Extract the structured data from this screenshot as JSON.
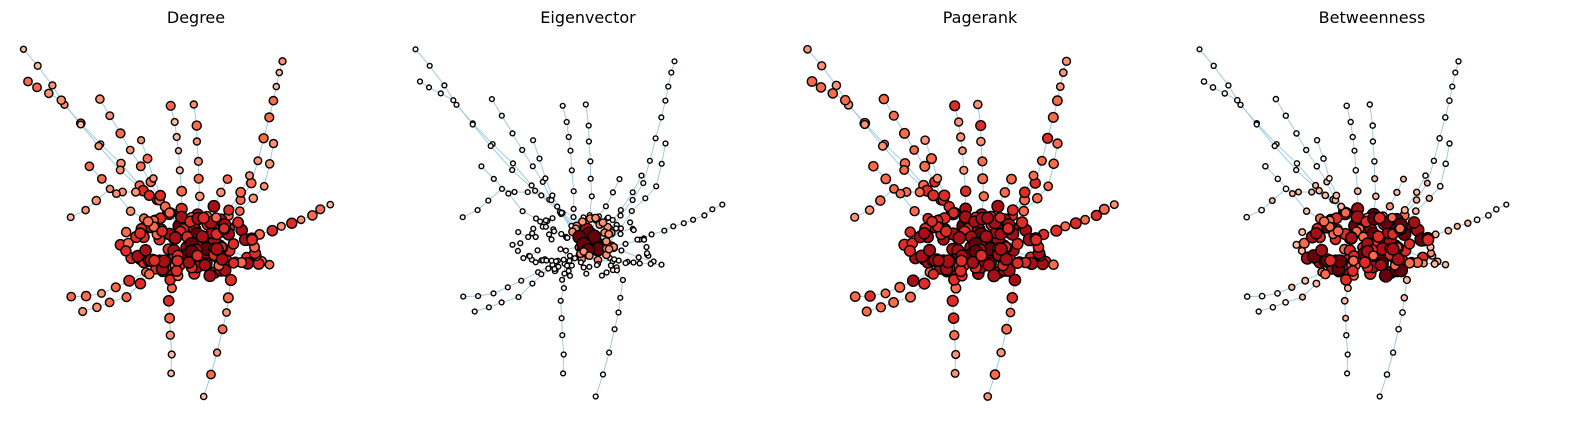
{
  "figure": {
    "panels": [
      {
        "title": "Degree",
        "measure": "degree"
      },
      {
        "title": "Eigenvector",
        "measure": "eigenvector"
      },
      {
        "title": "Pagerank",
        "measure": "pagerank"
      },
      {
        "title": "Betweenness",
        "measure": "betweenness"
      }
    ]
  },
  "colors": {
    "edge": "#9ecae1",
    "node_outline": "#000000",
    "colormap": [
      "#fff5f0",
      "#fcbba1",
      "#fc9272",
      "#fb6a4a",
      "#de2d26",
      "#a50f15",
      "#67000d"
    ]
  }
}
